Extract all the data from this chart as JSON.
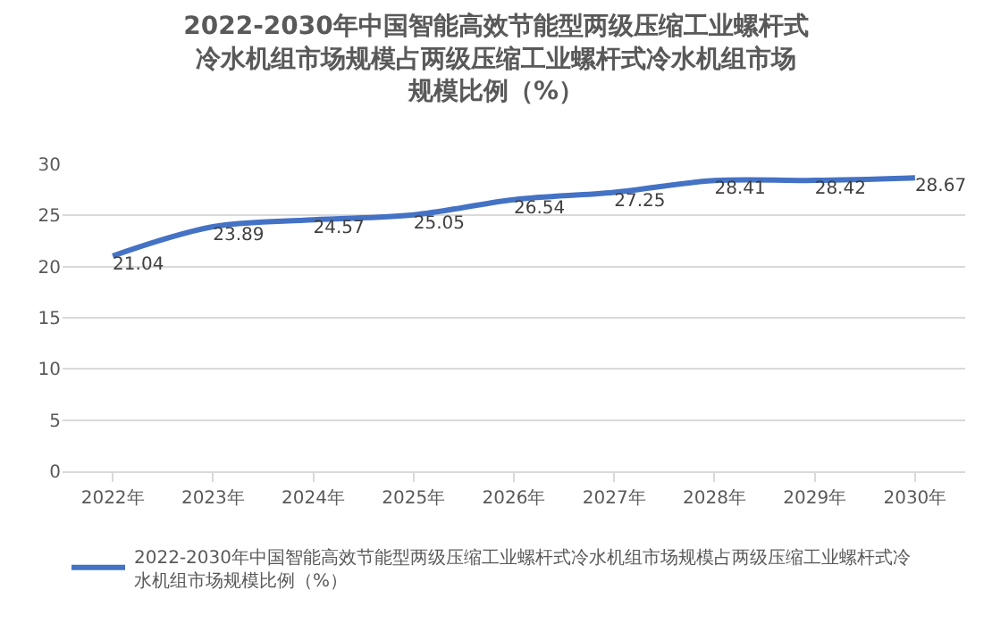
{
  "chart_data": {
    "type": "line",
    "title": "2022-2030年中国智能高效节能型两级压缩工业螺杆式冷水机组市场规模占两级压缩工业螺杆式冷水机组市场规模比例（%）",
    "categories": [
      "2022年",
      "2023年",
      "2024年",
      "2025年",
      "2026年",
      "2027年",
      "2028年",
      "2029年",
      "2030年"
    ],
    "series": [
      {
        "name": "2022-2030年中国智能高效节能型两级压缩工业螺杆式冷水机组市场规模占两级压缩工业螺杆式冷水机组市场规模比例（%）",
        "color": "#4472c4",
        "values": [
          21.04,
          23.89,
          24.57,
          25.05,
          26.54,
          27.25,
          28.41,
          28.42,
          28.67
        ]
      }
    ],
    "ylim": [
      0,
      30
    ],
    "yticks": [
      0,
      5,
      10,
      15,
      20,
      25,
      30
    ],
    "grid": "y",
    "legend": "bottom",
    "data_labels": true,
    "marker": "none",
    "line_style": "solid"
  }
}
